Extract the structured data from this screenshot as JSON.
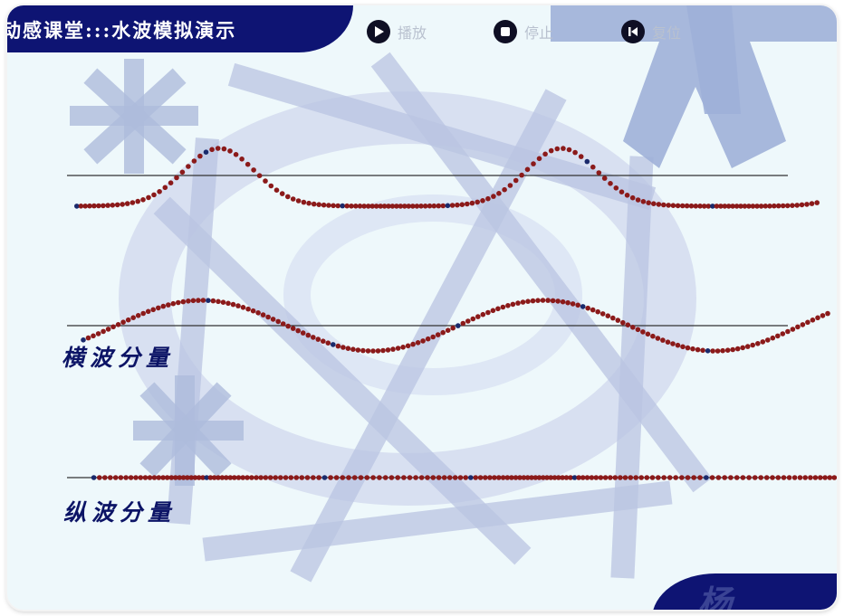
{
  "app": {
    "title": "动感课堂:::水波模拟演示"
  },
  "controls": [
    {
      "name": "play",
      "label": "播放",
      "icon": "play-icon"
    },
    {
      "name": "stop",
      "label": "停止",
      "icon": "stop-icon"
    },
    {
      "name": "reset",
      "label": "复位",
      "icon": "rewind-icon"
    }
  ],
  "sections": {
    "transverse_label": "横波分量",
    "longitudinal_label": "纵波分量"
  },
  "corner": {
    "char": "杨"
  },
  "colors": {
    "navy": "#0e1473",
    "particle": "#8b1a1a",
    "particle_marker": "#1a2a6c",
    "background": "#eef8fb",
    "decoration": "#b4bfdc"
  }
}
